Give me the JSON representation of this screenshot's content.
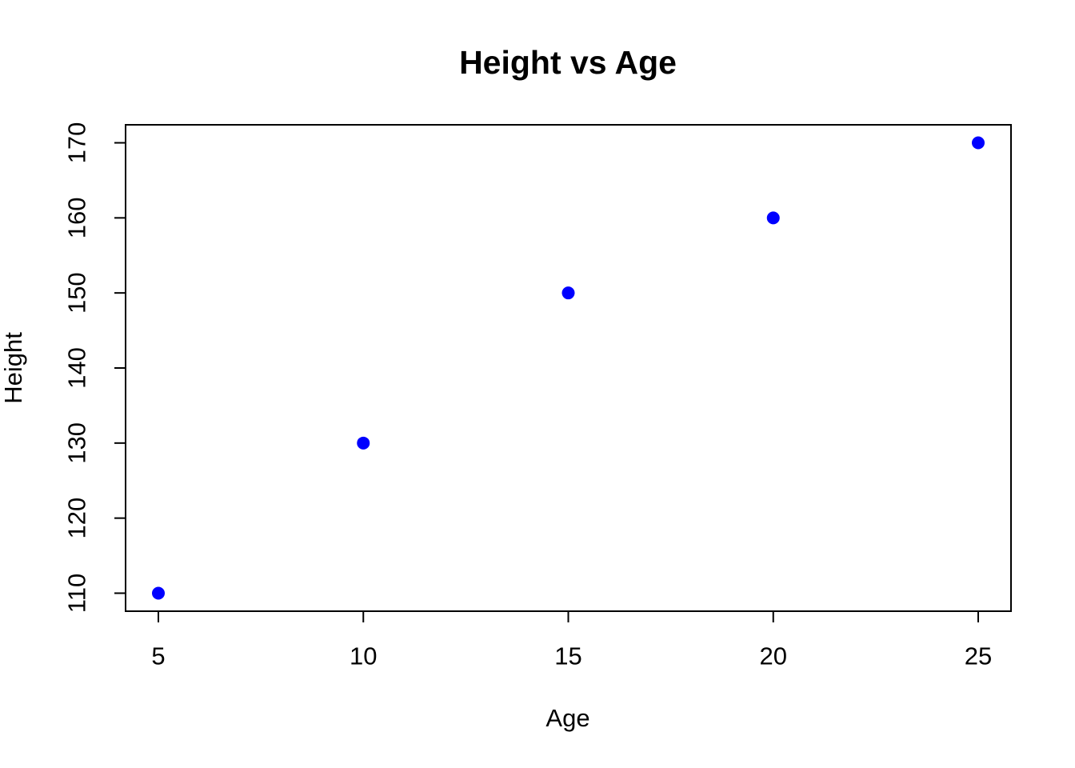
{
  "chart_data": {
    "type": "scatter",
    "title": "Height vs Age",
    "xlabel": "Age",
    "ylabel": "Height",
    "x": [
      5,
      10,
      15,
      20,
      25
    ],
    "y": [
      110,
      130,
      150,
      160,
      170
    ],
    "series": [
      {
        "name": "Height",
        "points": [
          [
            5,
            110
          ],
          [
            10,
            130
          ],
          [
            15,
            150
          ],
          [
            20,
            160
          ],
          [
            25,
            170
          ]
        ]
      }
    ],
    "xticks": [
      5,
      10,
      15,
      20,
      25
    ],
    "yticks": [
      110,
      120,
      130,
      140,
      150,
      160,
      170
    ],
    "xlim": [
      4.2,
      25.8
    ],
    "ylim": [
      107.6,
      172.4
    ],
    "grid": false,
    "legend": "none",
    "point_color": "#0000FF",
    "axis_color": "#000000",
    "text_color": "#000000",
    "background": "#FFFFFF"
  }
}
